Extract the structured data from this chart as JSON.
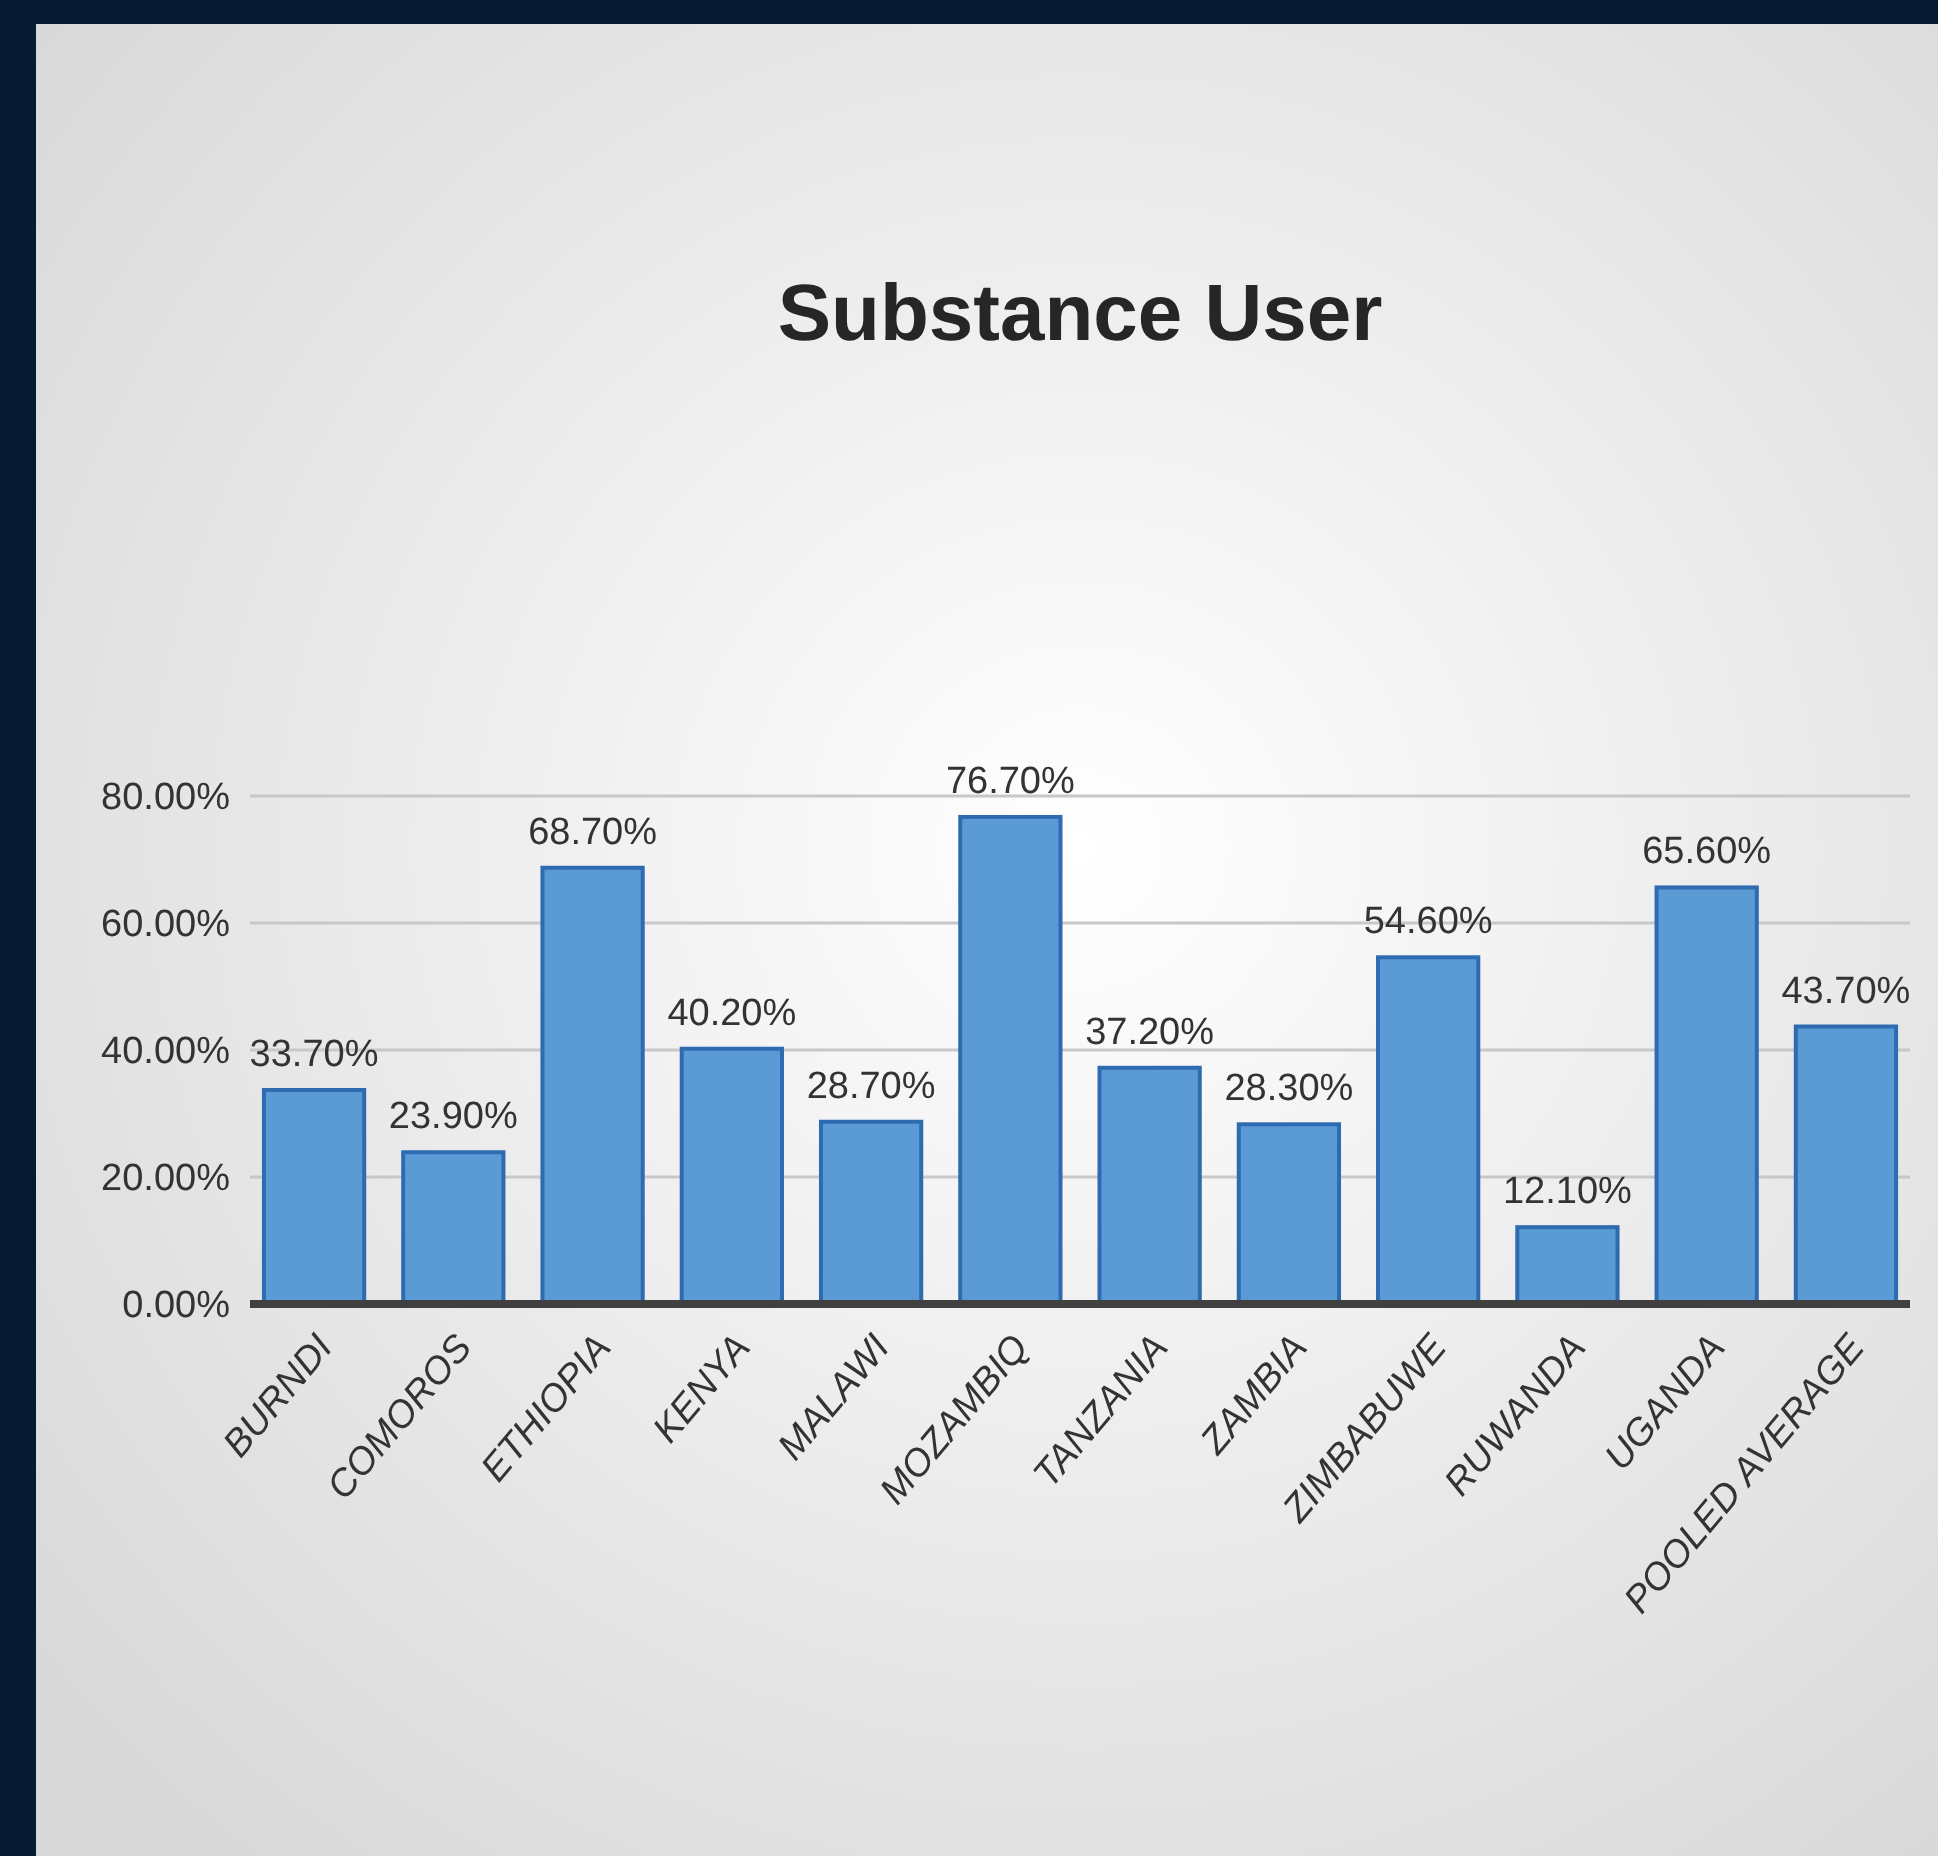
{
  "chart_data": {
    "type": "bar",
    "title": "Substance User",
    "categories": [
      "BURNDI",
      "COMOROS",
      "ETHIOPIA",
      "KENYA",
      "MALAWI",
      "MOZAMBIQ",
      "TANZANIA",
      "ZAMBIA",
      "ZIMBABUWE",
      "RUWANDA",
      "UGANDA",
      "POOLED AVERAGE"
    ],
    "values": [
      33.7,
      23.9,
      68.7,
      40.2,
      28.7,
      76.7,
      37.2,
      28.3,
      54.6,
      12.1,
      65.6,
      43.7
    ],
    "value_labels": [
      "33.70%",
      "23.90%",
      "68.70%",
      "40.20%",
      "28.70%",
      "76.70%",
      "37.20%",
      "28.30%",
      "54.60%",
      "12.10%",
      "65.60%",
      "43.70%"
    ],
    "color": "#5b9bd5",
    "ylim": [
      0,
      80
    ],
    "yticks": [
      {
        "value": 0,
        "label": "0.00%"
      },
      {
        "value": 20,
        "label": "20.00%"
      },
      {
        "value": 40,
        "label": "40.00%"
      },
      {
        "value": 60,
        "label": "60.00%"
      },
      {
        "value": 80,
        "label": "80.00%"
      }
    ],
    "grid": "y"
  }
}
